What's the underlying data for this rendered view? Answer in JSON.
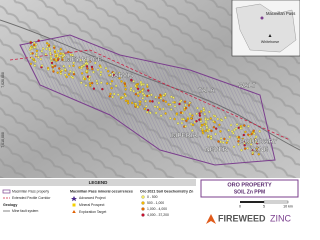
{
  "map": {
    "labels": [
      "LIMEY RIDGE",
      "JARVIS",
      "TALA",
      "WALT",
      "IMPERIAL",
      "NEVER",
      "BOUNDARY",
      "ZONE"
    ],
    "coordinates": [
      "7,020,000",
      "7,010,000"
    ],
    "inset": {
      "labels": [
        "Macmillan Pass",
        "Whitehorse"
      ]
    }
  },
  "legend": {
    "title": "LEGEND",
    "items": [
      "Macmillan Pass property",
      "Extended Fectile Corridor",
      "Geology",
      "Mine fault system"
    ],
    "occurrences": {
      "title": "Macmillan Pass mineral occurrences",
      "items": [
        "Advanced Project",
        "Mineral Prospect",
        "Exploration Target"
      ]
    },
    "soil": {
      "title": "Oro 2021 Soil Geochemistry Zn",
      "items": [
        "0 - 500",
        "500 - 1,000",
        "1,000 - 4,000",
        "4,000 - 37,200"
      ]
    }
  },
  "title_box": {
    "lines": [
      "ORO PROPERTY",
      "SOIL Zn PPM"
    ]
  },
  "scale": {
    "labels": [
      "0",
      "5",
      "10 km"
    ]
  },
  "logo": {
    "name": "FIREWEED",
    "suffix": "ZINC"
  }
}
